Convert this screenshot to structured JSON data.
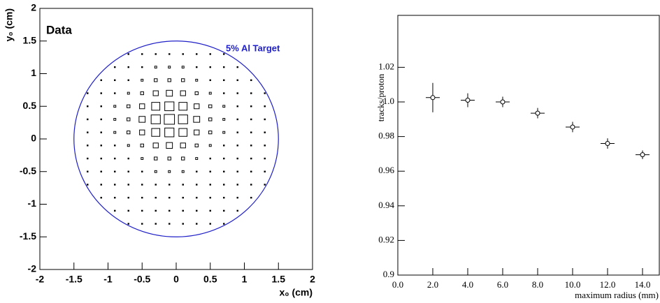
{
  "chart_data": [
    {
      "type": "histogram2d",
      "annotation": "Data",
      "xlabel": "x₀ (cm)",
      "ylabel": "y₀ (cm)",
      "xlim": [
        -2,
        2
      ],
      "ylim": [
        -2,
        2
      ],
      "xticks": [
        -2,
        -1.5,
        -1,
        -0.5,
        0,
        0.5,
        1,
        1.5,
        2
      ],
      "yticks": [
        -2,
        -1.5,
        -1,
        -0.5,
        0,
        0.5,
        1,
        1.5,
        2
      ],
      "xbins": [
        -2,
        -1.8,
        -1.6,
        -1.4,
        -1.2,
        -1,
        -0.8,
        -0.6,
        -0.4,
        -0.2,
        0,
        0.2,
        0.4,
        0.6,
        0.8,
        1,
        1.2,
        1.4,
        1.6,
        1.8,
        2
      ],
      "ybins": [
        -2,
        -1.8,
        -1.6,
        -1.4,
        -1.2,
        -1,
        -0.8,
        -0.6,
        -0.4,
        -0.2,
        0,
        0.2,
        0.4,
        0.6,
        0.8,
        1,
        1.2,
        1.4,
        1.6,
        1.8,
        2
      ],
      "z": [
        [
          0,
          0,
          0,
          0,
          0,
          0,
          0,
          0,
          0,
          0,
          0,
          0,
          0,
          0,
          0,
          0,
          0,
          0,
          0,
          0
        ],
        [
          0,
          0,
          0,
          0,
          0,
          0,
          0,
          0,
          0,
          0,
          0,
          0,
          0,
          0,
          0,
          0,
          0,
          0,
          0,
          0
        ],
        [
          0,
          0,
          0,
          0,
          0,
          0,
          0,
          0,
          0,
          0,
          0,
          0,
          0,
          0,
          0,
          0,
          0,
          0,
          0,
          0
        ],
        [
          0,
          0,
          0,
          0,
          0,
          0,
          1,
          1,
          1,
          1,
          1,
          1,
          1,
          1,
          0,
          0,
          0,
          0,
          0,
          0
        ],
        [
          0,
          0,
          0,
          0,
          0,
          1,
          1,
          1,
          1,
          1,
          1,
          1,
          1,
          1,
          1,
          0,
          0,
          0,
          0,
          0
        ],
        [
          0,
          0,
          0,
          0,
          1,
          1,
          1,
          1,
          1,
          1,
          1,
          1,
          1,
          1,
          1,
          1,
          0,
          0,
          0,
          0
        ],
        [
          0,
          0,
          0,
          1,
          1,
          1,
          1,
          1,
          1,
          1,
          1,
          1,
          1,
          1,
          1,
          1,
          1,
          0,
          0,
          0
        ],
        [
          0,
          0,
          0,
          1,
          1,
          1,
          1,
          1,
          2,
          2,
          2,
          1,
          1,
          1,
          1,
          1,
          1,
          0,
          0,
          0
        ],
        [
          0,
          0,
          0,
          1,
          1,
          1,
          1,
          2,
          3,
          3,
          3,
          2,
          1,
          1,
          1,
          1,
          1,
          0,
          0,
          0
        ],
        [
          0,
          0,
          0,
          1,
          1,
          1,
          2,
          3,
          5,
          6,
          5,
          3,
          2,
          1,
          1,
          1,
          1,
          0,
          0,
          0
        ],
        [
          0,
          0,
          0,
          1,
          1,
          2,
          3,
          5,
          8,
          9,
          8,
          5,
          3,
          2,
          1,
          1,
          1,
          0,
          0,
          0
        ],
        [
          0,
          0,
          0,
          1,
          1,
          2,
          3,
          6,
          9,
          10,
          9,
          6,
          3,
          2,
          1,
          1,
          1,
          0,
          0,
          0
        ],
        [
          0,
          0,
          0,
          1,
          1,
          2,
          3,
          5,
          8,
          9,
          8,
          5,
          3,
          2,
          1,
          1,
          1,
          0,
          0,
          0
        ],
        [
          0,
          0,
          0,
          1,
          1,
          1,
          2,
          3,
          5,
          6,
          5,
          3,
          2,
          1,
          1,
          1,
          1,
          0,
          0,
          0
        ],
        [
          0,
          0,
          0,
          0,
          1,
          1,
          1,
          2,
          3,
          3,
          3,
          2,
          1,
          1,
          1,
          1,
          0,
          0,
          0,
          0
        ],
        [
          0,
          0,
          0,
          0,
          0,
          1,
          1,
          1,
          2,
          2,
          2,
          1,
          1,
          1,
          1,
          0,
          0,
          0,
          0,
          0
        ],
        [
          0,
          0,
          0,
          0,
          0,
          0,
          1,
          1,
          1,
          1,
          1,
          1,
          1,
          1,
          0,
          0,
          0,
          0,
          0,
          0
        ],
        [
          0,
          0,
          0,
          0,
          0,
          0,
          0,
          0,
          0,
          0,
          0,
          0,
          0,
          0,
          0,
          0,
          0,
          0,
          0,
          0
        ],
        [
          0,
          0,
          0,
          0,
          0,
          0,
          0,
          0,
          0,
          0,
          0,
          0,
          0,
          0,
          0,
          0,
          0,
          0,
          0,
          0
        ],
        [
          0,
          0,
          0,
          0,
          0,
          0,
          0,
          0,
          0,
          0,
          0,
          0,
          0,
          0,
          0,
          0,
          0,
          0,
          0,
          0
        ]
      ],
      "color": "#000000",
      "circle": {
        "center": [
          0,
          0
        ],
        "radius": 1.5,
        "color": "#1f1fc8",
        "label": "5% Al Target"
      }
    },
    {
      "type": "scatter",
      "xlabel": "maximum radius (mm)",
      "ylabel": "tracks/proton",
      "xlim": [
        0,
        15
      ],
      "ylim": [
        0.9,
        1.05
      ],
      "xticks": [
        {
          "value": 0,
          "label": "0.0"
        },
        {
          "value": 2,
          "label": "2.0"
        },
        {
          "value": 4,
          "label": "4.0"
        },
        {
          "value": 6,
          "label": "6.0"
        },
        {
          "value": 8,
          "label": "8.0"
        },
        {
          "value": 10,
          "label": "10.0"
        },
        {
          "value": 12,
          "label": "12.0"
        },
        {
          "value": 14,
          "label": "14.0"
        }
      ],
      "yticks": [
        0.9,
        0.92,
        0.94,
        0.96,
        0.98,
        {
          "value": 1,
          "label": "1.0"
        },
        1.02
      ],
      "x": [
        2,
        4,
        6,
        8,
        10,
        12,
        14
      ],
      "values": [
        1.0025,
        1.001,
        1.0,
        0.9935,
        0.9855,
        0.976,
        0.9695
      ],
      "yerr": [
        0.0085,
        0.004,
        0.003,
        0.003,
        0.003,
        0.003,
        0.0025
      ],
      "xerr": [
        0.4,
        0.4,
        0.4,
        0.4,
        0.4,
        0.4,
        0.4
      ],
      "color": "#000000"
    }
  ]
}
